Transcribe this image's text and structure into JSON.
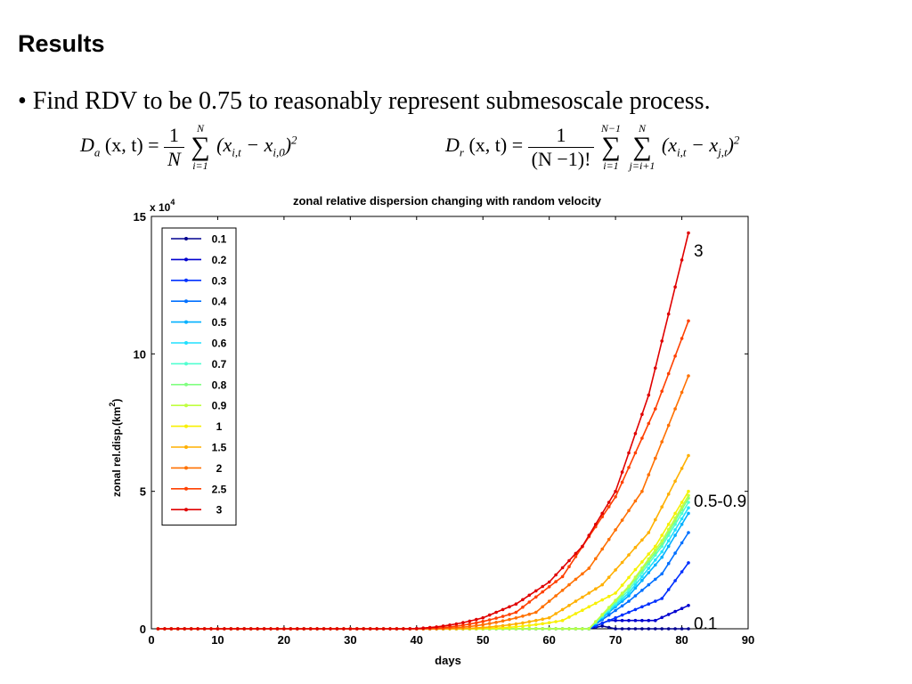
{
  "slide": {
    "title": "Results",
    "bullet": "• Find RDV to be 0.75 to reasonably represent submesoscale process."
  },
  "formulas": {
    "a": {
      "lhs": "D",
      "lhs_sub": "a",
      "args": "(x, t) =",
      "frac_num": "1",
      "frac_den": "N",
      "sum_top": "N",
      "sum_bot": "i=1",
      "term_open": "(x",
      "term_sub1": "i,t",
      "term_mid": " − x",
      "term_sub2": "i,0",
      "term_close": ")",
      "power": "2"
    },
    "r": {
      "lhs": "D",
      "lhs_sub": "r",
      "args": "(x, t) =",
      "frac_num": "1",
      "frac_den": "(N −1)!",
      "sum1_top": "N−1",
      "sum1_bot": "i=1",
      "sum2_top": "N",
      "sum2_bot": "j=i+1",
      "term_open": "(x",
      "term_sub1": "i,t",
      "term_mid": " − x",
      "term_sub2": "j,t",
      "term_close": ")",
      "power": "2"
    }
  },
  "chart_data": {
    "type": "line",
    "title": "zonal relative dispersion changing with random velocity",
    "xlabel": "days",
    "ylabel": "zonal rel.disp.(km",
    "ylabel_sup": "2",
    "ylabel_close": ")",
    "y_multiplier": "x 10",
    "y_multiplier_exp": "4",
    "xlim": [
      0,
      90
    ],
    "ylim": [
      0,
      150000
    ],
    "x_ticks": [
      "0",
      "10",
      "20",
      "30",
      "40",
      "50",
      "60",
      "70",
      "80",
      "90"
    ],
    "y_ticks": [
      "0",
      "5",
      "10",
      "15"
    ],
    "grid": false,
    "legend_position": "top-left",
    "annotations": [
      {
        "text": "3",
        "x": 81,
        "y": 138000
      },
      {
        "text": "0.5-0.9",
        "x": 81,
        "y": 47000
      },
      {
        "text": "0.1",
        "x": 81,
        "y": 2500
      }
    ],
    "x": [
      1,
      81
    ],
    "series": [
      {
        "name": "0.1",
        "color": "#00008f",
        "start": 50,
        "finals": [
          [
            66,
            0
          ],
          [
            68,
            1000
          ],
          [
            70,
            0
          ],
          [
            81,
            0
          ]
        ]
      },
      {
        "name": "0.2",
        "color": "#0000d0",
        "start": 50,
        "finals": [
          [
            66,
            0
          ],
          [
            69,
            3000
          ],
          [
            76,
            3000
          ],
          [
            81,
            8500
          ]
        ]
      },
      {
        "name": "0.3",
        "color": "#0030ff",
        "start": 50,
        "finals": [
          [
            66,
            0
          ],
          [
            72,
            6000
          ],
          [
            77,
            11000
          ],
          [
            81,
            24000
          ]
        ]
      },
      {
        "name": "0.4",
        "color": "#0070ff",
        "start": 50,
        "finals": [
          [
            66,
            0
          ],
          [
            72,
            10000
          ],
          [
            77,
            20000
          ],
          [
            81,
            35000
          ]
        ]
      },
      {
        "name": "0.5",
        "color": "#00b0ff",
        "start": 50,
        "finals": [
          [
            66,
            0
          ],
          [
            72,
            12000
          ],
          [
            77,
            26000
          ],
          [
            81,
            42000
          ]
        ]
      },
      {
        "name": "0.6",
        "color": "#20e0ff",
        "start": 50,
        "finals": [
          [
            66,
            0
          ],
          [
            72,
            13000
          ],
          [
            77,
            28000
          ],
          [
            81,
            44000
          ]
        ]
      },
      {
        "name": "0.7",
        "color": "#50ffd0",
        "start": 50,
        "finals": [
          [
            66,
            0
          ],
          [
            72,
            14000
          ],
          [
            77,
            30000
          ],
          [
            81,
            46000
          ]
        ]
      },
      {
        "name": "0.8",
        "color": "#80ff80",
        "start": 50,
        "finals": [
          [
            66,
            0
          ],
          [
            72,
            15000
          ],
          [
            77,
            31000
          ],
          [
            81,
            47500
          ]
        ]
      },
      {
        "name": "0.9",
        "color": "#c0ff40",
        "start": 50,
        "finals": [
          [
            66,
            0
          ],
          [
            72,
            15500
          ],
          [
            77,
            32000
          ],
          [
            81,
            48500
          ]
        ]
      },
      {
        "name": "1",
        "color": "#f8f000",
        "start": 48,
        "finals": [
          [
            62,
            3000
          ],
          [
            70,
            13000
          ],
          [
            76,
            30000
          ],
          [
            81,
            50000
          ]
        ]
      },
      {
        "name": "1.5",
        "color": "#ffb000",
        "start": 45,
        "finals": [
          [
            60,
            4000
          ],
          [
            68,
            16000
          ],
          [
            75,
            35000
          ],
          [
            81,
            63000
          ]
        ]
      },
      {
        "name": "2",
        "color": "#ff7000",
        "start": 42,
        "finals": [
          [
            58,
            6000
          ],
          [
            66,
            22000
          ],
          [
            74,
            50000
          ],
          [
            81,
            92000
          ]
        ]
      },
      {
        "name": "2.5",
        "color": "#ff4000",
        "start": 40,
        "finals": [
          [
            55,
            6000
          ],
          [
            62,
            19000
          ],
          [
            70,
            48000
          ],
          [
            76,
            80000
          ],
          [
            81,
            112000
          ]
        ]
      },
      {
        "name": "3",
        "color": "#e00000",
        "start": 38,
        "finals": [
          [
            50,
            4000
          ],
          [
            55,
            9000
          ],
          [
            60,
            17000
          ],
          [
            65,
            30000
          ],
          [
            70,
            50000
          ],
          [
            75,
            85000
          ],
          [
            81,
            144000
          ]
        ]
      }
    ]
  }
}
